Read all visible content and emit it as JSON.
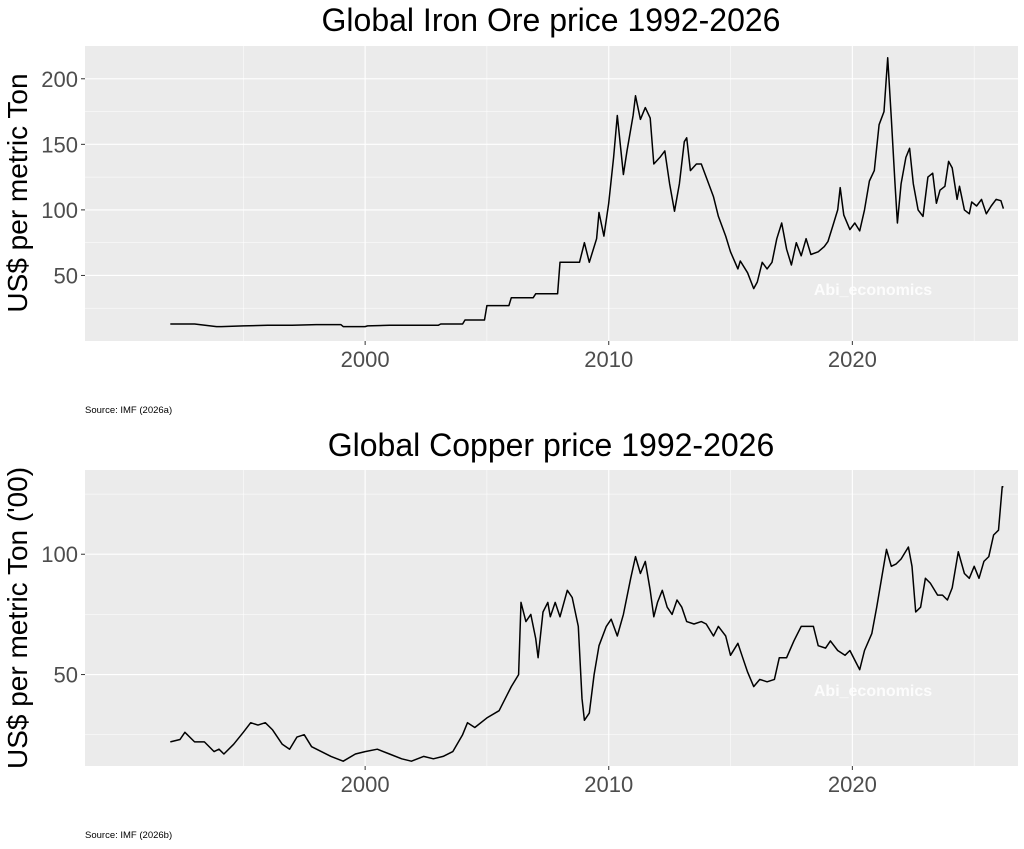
{
  "chart_data": [
    {
      "type": "line",
      "title": "Global Iron Ore price 1992-2026",
      "xlabel": "",
      "ylabel": "US$ per metric Ton",
      "xlim": [
        1988.5,
        2026.8
      ],
      "ylim": [
        0,
        225
      ],
      "x_ticks": [
        2000,
        2010,
        2020
      ],
      "y_ticks": [
        50,
        100,
        150,
        200
      ],
      "grid": true,
      "watermark": "Abi_economics",
      "source": "Source: IMF (2026a)",
      "series": [
        {
          "color": "#000000",
          "points": [
            [
              1992.0,
              13
            ],
            [
              1993.0,
              13
            ],
            [
              1993.9,
              11
            ],
            [
              1994.1,
              11
            ],
            [
              1995.0,
              11.5
            ],
            [
              1996.0,
              12
            ],
            [
              1997.0,
              12
            ],
            [
              1998.0,
              12.5
            ],
            [
              1999.0,
              12.5
            ],
            [
              1999.1,
              11
            ],
            [
              2000.0,
              11
            ],
            [
              2000.1,
              11.5
            ],
            [
              2001.0,
              12
            ],
            [
              2002.0,
              12
            ],
            [
              2003.0,
              12
            ],
            [
              2003.1,
              13
            ],
            [
              2004.0,
              13
            ],
            [
              2004.1,
              16
            ],
            [
              2004.9,
              16
            ],
            [
              2005.0,
              27
            ],
            [
              2005.9,
              27
            ],
            [
              2006.0,
              33
            ],
            [
              2006.9,
              33
            ],
            [
              2007.0,
              36
            ],
            [
              2007.9,
              36
            ],
            [
              2008.0,
              60
            ],
            [
              2008.8,
              60
            ],
            [
              2009.0,
              75
            ],
            [
              2009.2,
              60
            ],
            [
              2009.5,
              78
            ],
            [
              2009.6,
              98
            ],
            [
              2009.8,
              80
            ],
            [
              2010.0,
              105
            ],
            [
              2010.2,
              140
            ],
            [
              2010.35,
              172
            ],
            [
              2010.6,
              127
            ],
            [
              2010.75,
              145
            ],
            [
              2011.0,
              172
            ],
            [
              2011.1,
              187
            ],
            [
              2011.3,
              169
            ],
            [
              2011.5,
              178
            ],
            [
              2011.7,
              170
            ],
            [
              2011.85,
              135
            ],
            [
              2012.1,
              140
            ],
            [
              2012.3,
              145
            ],
            [
              2012.5,
              120
            ],
            [
              2012.7,
              99
            ],
            [
              2012.9,
              120
            ],
            [
              2013.1,
              152
            ],
            [
              2013.2,
              155
            ],
            [
              2013.35,
              130
            ],
            [
              2013.6,
              135
            ],
            [
              2013.8,
              135
            ],
            [
              2014.0,
              125
            ],
            [
              2014.3,
              110
            ],
            [
              2014.5,
              95
            ],
            [
              2014.8,
              80
            ],
            [
              2015.0,
              68
            ],
            [
              2015.3,
              55
            ],
            [
              2015.4,
              61
            ],
            [
              2015.7,
              52
            ],
            [
              2015.95,
              40
            ],
            [
              2016.1,
              45
            ],
            [
              2016.3,
              60
            ],
            [
              2016.5,
              55
            ],
            [
              2016.7,
              60
            ],
            [
              2016.9,
              78
            ],
            [
              2017.1,
              90
            ],
            [
              2017.3,
              70
            ],
            [
              2017.5,
              58
            ],
            [
              2017.7,
              75
            ],
            [
              2017.9,
              65
            ],
            [
              2018.1,
              78
            ],
            [
              2018.3,
              66
            ],
            [
              2018.6,
              68
            ],
            [
              2018.85,
              72
            ],
            [
              2019.0,
              76
            ],
            [
              2019.2,
              88
            ],
            [
              2019.4,
              100
            ],
            [
              2019.5,
              117
            ],
            [
              2019.65,
              96
            ],
            [
              2019.9,
              85
            ],
            [
              2020.1,
              90
            ],
            [
              2020.3,
              84
            ],
            [
              2020.5,
              100
            ],
            [
              2020.7,
              122
            ],
            [
              2020.9,
              130
            ],
            [
              2021.1,
              165
            ],
            [
              2021.3,
              175
            ],
            [
              2021.45,
              216
            ],
            [
              2021.6,
              170
            ],
            [
              2021.75,
              120
            ],
            [
              2021.85,
              90
            ],
            [
              2022.0,
              120
            ],
            [
              2022.2,
              140
            ],
            [
              2022.35,
              147
            ],
            [
              2022.5,
              120
            ],
            [
              2022.7,
              100
            ],
            [
              2022.9,
              95
            ],
            [
              2023.1,
              125
            ],
            [
              2023.3,
              128
            ],
            [
              2023.45,
              105
            ],
            [
              2023.6,
              115
            ],
            [
              2023.8,
              118
            ],
            [
              2023.95,
              137
            ],
            [
              2024.1,
              132
            ],
            [
              2024.3,
              108
            ],
            [
              2024.4,
              118
            ],
            [
              2024.6,
              100
            ],
            [
              2024.8,
              97
            ],
            [
              2024.9,
              106
            ],
            [
              2025.1,
              103
            ],
            [
              2025.3,
              108
            ],
            [
              2025.5,
              97
            ],
            [
              2025.7,
              103
            ],
            [
              2025.9,
              108
            ],
            [
              2026.1,
              107
            ],
            [
              2026.2,
              101
            ]
          ]
        }
      ]
    },
    {
      "type": "line",
      "title": "Global Copper price 1992-2026",
      "xlabel": "",
      "ylabel": "US$ per metric Ton ('00)",
      "xlim": [
        1988.5,
        2026.8
      ],
      "ylim": [
        12,
        135
      ],
      "x_ticks": [
        2000,
        2010,
        2020
      ],
      "y_ticks": [
        50,
        100
      ],
      "grid": true,
      "watermark": "Abi_economics",
      "source": "Source: IMF (2026b)",
      "series": [
        {
          "color": "#000000",
          "points": [
            [
              1992.0,
              22
            ],
            [
              1992.4,
              23
            ],
            [
              1992.6,
              26
            ],
            [
              1993.0,
              22
            ],
            [
              1993.4,
              22
            ],
            [
              1993.8,
              18
            ],
            [
              1994.0,
              19
            ],
            [
              1994.2,
              17
            ],
            [
              1994.6,
              21
            ],
            [
              1995.0,
              26
            ],
            [
              1995.3,
              30
            ],
            [
              1995.6,
              29
            ],
            [
              1995.9,
              30
            ],
            [
              1996.2,
              27
            ],
            [
              1996.6,
              21
            ],
            [
              1996.9,
              19
            ],
            [
              1997.2,
              24
            ],
            [
              1997.5,
              25
            ],
            [
              1997.8,
              20
            ],
            [
              1998.2,
              18
            ],
            [
              1998.6,
              16
            ],
            [
              1999.1,
              14
            ],
            [
              1999.6,
              17
            ],
            [
              2000.0,
              18
            ],
            [
              2000.5,
              19
            ],
            [
              2001.0,
              17
            ],
            [
              2001.5,
              15
            ],
            [
              2001.9,
              14
            ],
            [
              2002.4,
              16
            ],
            [
              2002.8,
              15
            ],
            [
              2003.2,
              16
            ],
            [
              2003.6,
              18
            ],
            [
              2004.0,
              25
            ],
            [
              2004.2,
              30
            ],
            [
              2004.5,
              28
            ],
            [
              2005.0,
              32
            ],
            [
              2005.5,
              35
            ],
            [
              2006.0,
              45
            ],
            [
              2006.3,
              50
            ],
            [
              2006.4,
              80
            ],
            [
              2006.6,
              72
            ],
            [
              2006.8,
              75
            ],
            [
              2007.0,
              65
            ],
            [
              2007.1,
              57
            ],
            [
              2007.3,
              76
            ],
            [
              2007.5,
              80
            ],
            [
              2007.6,
              74
            ],
            [
              2007.8,
              80
            ],
            [
              2008.0,
              74
            ],
            [
              2008.3,
              85
            ],
            [
              2008.5,
              82
            ],
            [
              2008.75,
              70
            ],
            [
              2008.9,
              40
            ],
            [
              2009.0,
              31
            ],
            [
              2009.2,
              34
            ],
            [
              2009.4,
              50
            ],
            [
              2009.6,
              62
            ],
            [
              2009.9,
              70
            ],
            [
              2010.1,
              73
            ],
            [
              2010.35,
              66
            ],
            [
              2010.6,
              75
            ],
            [
              2010.9,
              90
            ],
            [
              2011.1,
              99
            ],
            [
              2011.3,
              92
            ],
            [
              2011.5,
              97
            ],
            [
              2011.7,
              85
            ],
            [
              2011.85,
              74
            ],
            [
              2012.0,
              80
            ],
            [
              2012.2,
              85
            ],
            [
              2012.4,
              78
            ],
            [
              2012.6,
              75
            ],
            [
              2012.8,
              81
            ],
            [
              2013.0,
              78
            ],
            [
              2013.2,
              72
            ],
            [
              2013.5,
              71
            ],
            [
              2013.8,
              72
            ],
            [
              2014.0,
              71
            ],
            [
              2014.3,
              66
            ],
            [
              2014.5,
              70
            ],
            [
              2014.8,
              66
            ],
            [
              2015.0,
              58
            ],
            [
              2015.3,
              63
            ],
            [
              2015.5,
              57
            ],
            [
              2015.7,
              51
            ],
            [
              2015.95,
              45
            ],
            [
              2016.2,
              48
            ],
            [
              2016.5,
              47
            ],
            [
              2016.8,
              48
            ],
            [
              2017.0,
              57
            ],
            [
              2017.3,
              57
            ],
            [
              2017.6,
              64
            ],
            [
              2017.9,
              70
            ],
            [
              2018.2,
              70
            ],
            [
              2018.4,
              70
            ],
            [
              2018.6,
              62
            ],
            [
              2018.9,
              61
            ],
            [
              2019.1,
              64
            ],
            [
              2019.4,
              60
            ],
            [
              2019.7,
              58
            ],
            [
              2019.9,
              60
            ],
            [
              2020.1,
              56
            ],
            [
              2020.3,
              52
            ],
            [
              2020.5,
              60
            ],
            [
              2020.8,
              67
            ],
            [
              2021.0,
              78
            ],
            [
              2021.2,
              90
            ],
            [
              2021.4,
              102
            ],
            [
              2021.6,
              95
            ],
            [
              2021.8,
              96
            ],
            [
              2022.0,
              98
            ],
            [
              2022.3,
              103
            ],
            [
              2022.45,
              95
            ],
            [
              2022.6,
              76
            ],
            [
              2022.8,
              78
            ],
            [
              2023.0,
              90
            ],
            [
              2023.2,
              88
            ],
            [
              2023.5,
              83
            ],
            [
              2023.7,
              83
            ],
            [
              2023.9,
              81
            ],
            [
              2024.1,
              86
            ],
            [
              2024.35,
              101
            ],
            [
              2024.6,
              92
            ],
            [
              2024.8,
              90
            ],
            [
              2025.0,
              95
            ],
            [
              2025.2,
              90
            ],
            [
              2025.4,
              97
            ],
            [
              2025.6,
              99
            ],
            [
              2025.8,
              108
            ],
            [
              2026.0,
              110
            ],
            [
              2026.15,
              128
            ],
            [
              2026.2,
              128
            ]
          ]
        }
      ]
    }
  ]
}
